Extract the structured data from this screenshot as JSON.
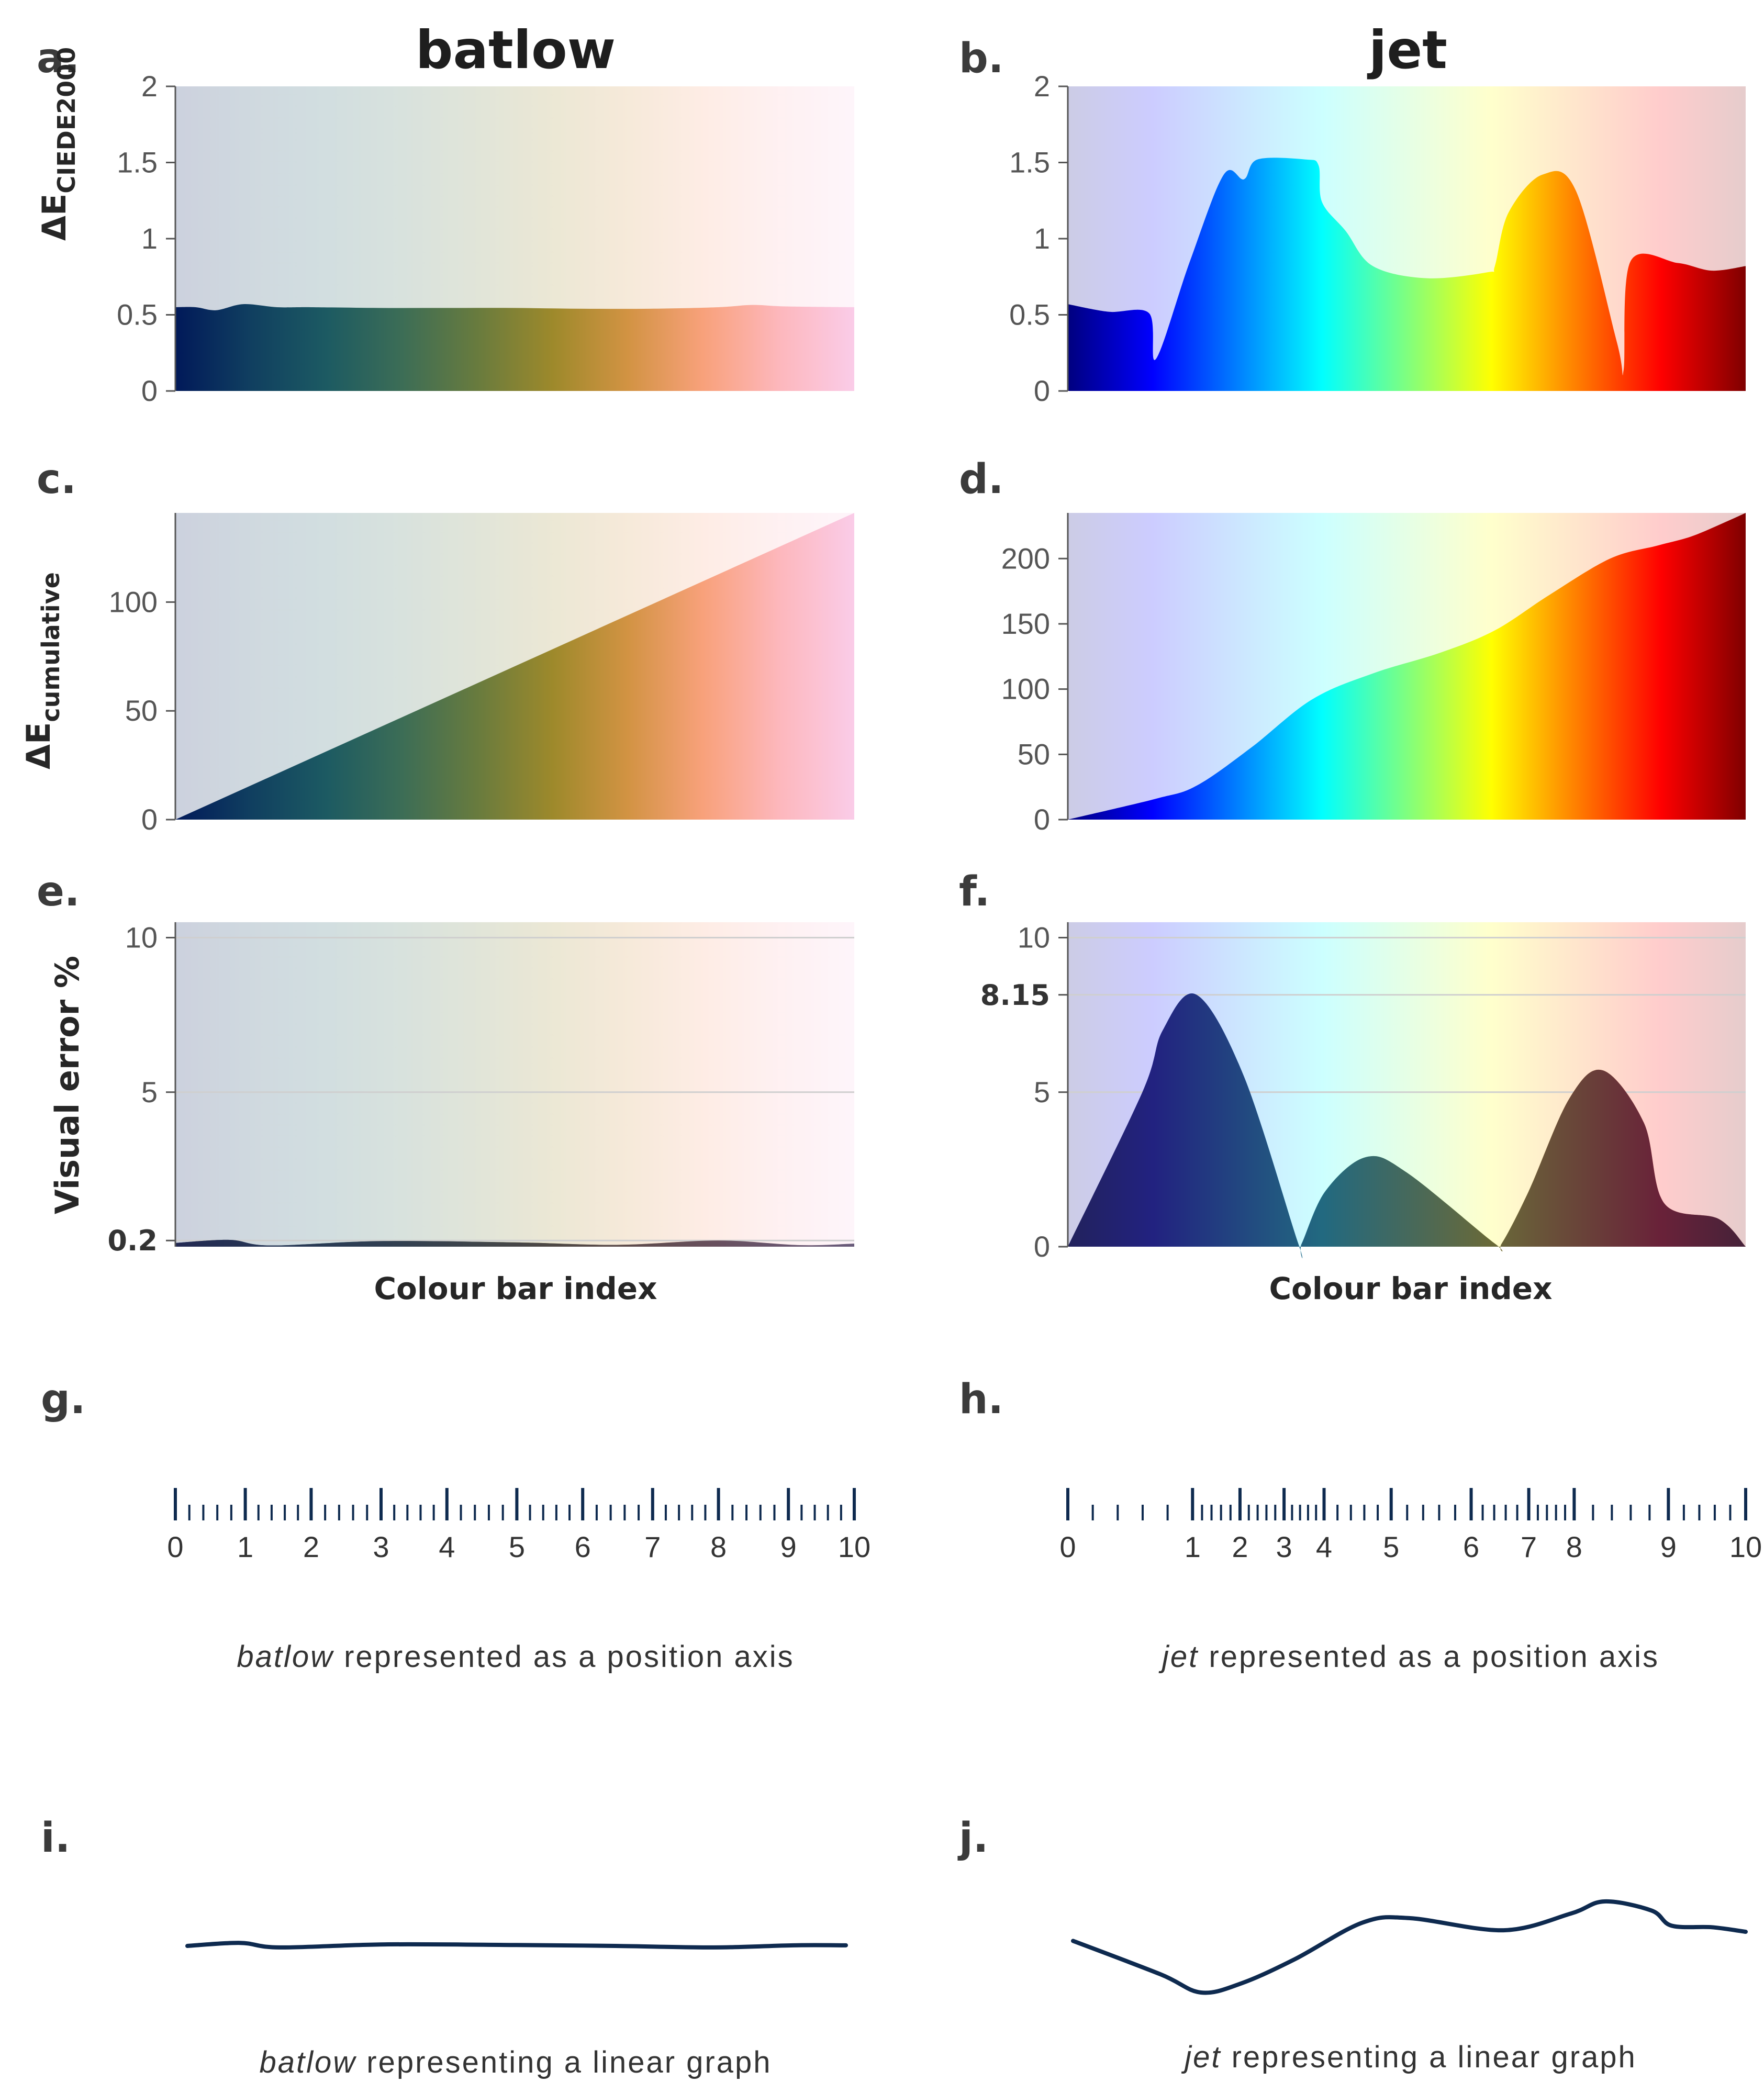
{
  "columns": {
    "left": {
      "title": "batlow"
    },
    "right": {
      "title": "jet"
    }
  },
  "colors": {
    "batlow_stops": [
      "#011959",
      "#103f60",
      "#1c5a62",
      "#3c6d56",
      "#687b3e",
      "#9d892b",
      "#d29343",
      "#f8a17b",
      "#fdb7bc",
      "#facce8"
    ],
    "jet_stops": [
      "#00007f",
      "#0000ff",
      "#007fff",
      "#00ffff",
      "#7fff7f",
      "#ffff00",
      "#ff7f00",
      "#ff0000",
      "#7f0000"
    ],
    "line": "#0e2a4f",
    "error_fill": "#2f2f4f",
    "grid": "#cfcfcf"
  },
  "panels": {
    "a": {
      "letter": "a.",
      "ylabel_main": "ΔE",
      "ylabel_sub": "CIEDE2000"
    },
    "b": {
      "letter": "b."
    },
    "c": {
      "letter": "c.",
      "ylabel_main": "ΔE",
      "ylabel_sub": "cumulative"
    },
    "d": {
      "letter": "d."
    },
    "e": {
      "letter": "e.",
      "ylabel": "Visual error %",
      "xlabel": "Colour bar index"
    },
    "f": {
      "letter": "f.",
      "xlabel": "Colour bar index"
    },
    "g": {
      "letter": "g.",
      "caption_italic": "batlow",
      "caption_rest": " represented as a position axis"
    },
    "h": {
      "letter": "h.",
      "caption_italic": "jet",
      "caption_rest": " represented as a position axis"
    },
    "i": {
      "letter": "i.",
      "caption_italic": "batlow",
      "caption_rest": " representing a linear graph"
    },
    "j": {
      "letter": "j.",
      "caption_italic": "jet",
      "caption_rest": " representing a linear graph"
    }
  },
  "chart_data": [
    {
      "id": "a",
      "type": "area",
      "colormap": "batlow",
      "x": [
        0,
        0.3,
        0.6,
        1.0,
        1.5,
        2,
        3,
        4,
        5,
        6,
        7,
        8,
        8.5,
        9,
        10
      ],
      "y": [
        0.55,
        0.55,
        0.53,
        0.57,
        0.55,
        0.55,
        0.545,
        0.545,
        0.545,
        0.54,
        0.54,
        0.55,
        0.565,
        0.555,
        0.55
      ],
      "xlim": [
        0,
        10
      ],
      "ylim": [
        0,
        2
      ],
      "yticks": [
        "0",
        "0.5",
        "1",
        "1.5",
        "2"
      ]
    },
    {
      "id": "b",
      "type": "area",
      "colormap": "jet",
      "x": [
        0,
        0.6,
        1.2,
        1.3,
        1.8,
        2.3,
        2.6,
        2.8,
        3.5,
        3.7,
        3.75,
        4.1,
        4.5,
        5.3,
        6.2,
        6.3,
        6.5,
        7.0,
        7.5,
        8.1,
        8.2,
        8.3,
        9.0,
        9.5,
        10
      ],
      "y": [
        0.57,
        0.52,
        0.51,
        0.21,
        0.85,
        1.42,
        1.39,
        1.52,
        1.52,
        1.48,
        1.24,
        1.05,
        0.82,
        0.74,
        0.78,
        0.82,
        1.17,
        1.42,
        1.31,
        0.32,
        0.14,
        0.85,
        0.84,
        0.79,
        0.82
      ],
      "xlim": [
        0,
        10
      ],
      "ylim": [
        0,
        2
      ],
      "yticks": [
        "0",
        "0.5",
        "1",
        "1.5",
        "2"
      ]
    },
    {
      "id": "c",
      "type": "area",
      "colormap": "batlow",
      "x": [
        0,
        10
      ],
      "y": [
        0,
        141
      ],
      "xlim": [
        0,
        10
      ],
      "ylim": [
        0,
        141
      ],
      "yticks": [
        "0",
        "50",
        "100"
      ]
    },
    {
      "id": "d",
      "type": "area",
      "colormap": "jet",
      "x": [
        0,
        1.3,
        1.9,
        2.7,
        3.6,
        4.5,
        5.5,
        6.3,
        7.1,
        8.0,
        8.7,
        9.2,
        9.7,
        10
      ],
      "y": [
        0,
        16,
        26,
        55,
        92,
        112,
        128,
        145,
        172,
        200,
        210,
        217,
        228,
        235
      ],
      "xlim": [
        0,
        10
      ],
      "ylim": [
        0,
        235
      ],
      "yticks": [
        "0",
        "50",
        "100",
        "150",
        "200"
      ]
    },
    {
      "id": "e",
      "type": "area",
      "colormap": "batlow",
      "overlay": "dark",
      "x": [
        0,
        0.8,
        1.4,
        3,
        5,
        6.5,
        8,
        9.2,
        10
      ],
      "y": [
        0.12,
        0.22,
        0.04,
        0.18,
        0.14,
        0.06,
        0.2,
        0.05,
        0.1
      ],
      "xlim": [
        0,
        10
      ],
      "ylim": [
        0,
        10.5
      ],
      "yticks": [
        "0.2",
        "5",
        "10"
      ],
      "bold_ticks": [
        "0.2"
      ],
      "hlines": [
        0.2,
        5,
        10
      ]
    },
    {
      "id": "f",
      "type": "area",
      "colormap": "jet",
      "overlay": "dark",
      "x": [
        0,
        1.1,
        1.4,
        1.9,
        2.6,
        3.4,
        3.45,
        3.8,
        4.4,
        5.0,
        6.3,
        6.4,
        6.8,
        7.4,
        7.9,
        8.5,
        8.8,
        9.6,
        10
      ],
      "y": [
        0,
        5,
        7.0,
        8.15,
        5.5,
        0.1,
        0.1,
        1.8,
        2.9,
        2.4,
        0.1,
        0.1,
        1.8,
        4.8,
        5.7,
        4.0,
        1.4,
        0.9,
        0
      ],
      "xlim": [
        0,
        10
      ],
      "ylim": [
        0,
        10.5
      ],
      "yticks": [
        "0",
        "5",
        "8.15",
        "10"
      ],
      "bold_ticks": [
        "8.15"
      ],
      "hlines": [
        5,
        8.15,
        10
      ]
    },
    {
      "id": "g",
      "type": "position_axis",
      "major_positions": [
        0,
        1.03,
        2.0,
        3.03,
        4.0,
        5.03,
        6.0,
        7.03,
        8.0,
        9.03,
        10.0
      ],
      "labels": [
        "0",
        "1",
        "2",
        "3",
        "4",
        "5",
        "6",
        "7",
        "8",
        "9",
        "10"
      ],
      "minor_per_interval": 4
    },
    {
      "id": "h",
      "type": "position_axis",
      "major_positions": [
        0,
        1.84,
        2.54,
        3.19,
        3.78,
        4.77,
        5.95,
        6.8,
        7.47,
        8.86,
        10.0
      ],
      "labels": [
        "0",
        "1",
        "2",
        "3",
        "4",
        "5",
        "6",
        "7",
        "8",
        "9",
        "10"
      ],
      "minor_per_interval": 4
    },
    {
      "id": "i",
      "type": "line",
      "x": [
        0,
        0.8,
        1.4,
        3,
        5,
        6.5,
        8,
        9.2,
        10
      ],
      "y": [
        0.0,
        0.1,
        -0.05,
        0.05,
        0.03,
        0.0,
        -0.05,
        0.02,
        0.02
      ]
    },
    {
      "id": "j",
      "type": "line",
      "x": [
        0,
        1.3,
        1.9,
        2.5,
        3.3,
        4.3,
        5.0,
        6.4,
        7.4,
        7.9,
        8.6,
        8.9,
        9.5,
        10
      ],
      "y": [
        0.2,
        -0.9,
        -1.5,
        -1.2,
        -0.4,
        0.8,
        0.95,
        0.55,
        1.1,
        1.5,
        1.2,
        0.7,
        0.65,
        0.5
      ]
    }
  ]
}
